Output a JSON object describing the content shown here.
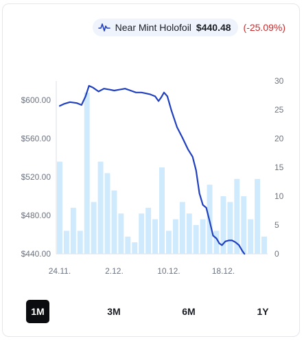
{
  "legend": {
    "icon": "waveform-icon",
    "name": "Near Mint Holofoil",
    "price": "$440.48",
    "change": "(-25.09%)",
    "change_color": "#c92a2a"
  },
  "ranges": [
    {
      "label": "1M",
      "active": true
    },
    {
      "label": "3M",
      "active": false
    },
    {
      "label": "6M",
      "active": false
    },
    {
      "label": "1Y",
      "active": false
    }
  ],
  "colors": {
    "line": "#1f3fbf",
    "bar": "#cfeafc",
    "grid": "#dcdfe4",
    "axis_text": "#6b7280"
  },
  "chart_data": {
    "type": "line",
    "title": "",
    "x_ticks": [
      "24.11.",
      "2.12.",
      "10.12.",
      "18.12."
    ],
    "x_tick_index": [
      0,
      8,
      16,
      24
    ],
    "y_left": {
      "ticks": [
        "$440.00",
        "$480.00",
        "$520.00",
        "$560.00",
        "$600.00"
      ],
      "tick_values": [
        440,
        480,
        520,
        560,
        600
      ],
      "range": [
        440,
        620
      ]
    },
    "y_right": {
      "ticks": [
        "0",
        "5",
        "10",
        "15",
        "20",
        "25",
        "30"
      ],
      "tick_values": [
        0,
        5,
        10,
        15,
        20,
        25,
        30
      ],
      "range": [
        0,
        30
      ]
    },
    "grid": false,
    "series": [
      {
        "name": "Near Mint Holofoil",
        "type": "line",
        "axis": "left",
        "points": [
          [
            0,
            594
          ],
          [
            0.6,
            596
          ],
          [
            1.5,
            598
          ],
          [
            2.5,
            597
          ],
          [
            3.2,
            595
          ],
          [
            3.8,
            604
          ],
          [
            4.3,
            615
          ],
          [
            4.9,
            613
          ],
          [
            5.7,
            609
          ],
          [
            6.5,
            612
          ],
          [
            7.3,
            611
          ],
          [
            8.0,
            610
          ],
          [
            8.8,
            611
          ],
          [
            9.6,
            612
          ],
          [
            10.4,
            610
          ],
          [
            11.2,
            608
          ],
          [
            12.0,
            608
          ],
          [
            12.7,
            607
          ],
          [
            13.3,
            606
          ],
          [
            14.0,
            604
          ],
          [
            14.5,
            599
          ],
          [
            14.9,
            603
          ],
          [
            15.3,
            608
          ],
          [
            15.8,
            604
          ],
          [
            16.4,
            589
          ],
          [
            17.2,
            572
          ],
          [
            18.0,
            561
          ],
          [
            18.8,
            549
          ],
          [
            19.5,
            541
          ],
          [
            20.0,
            527
          ],
          [
            20.5,
            503
          ],
          [
            21.0,
            491
          ],
          [
            21.5,
            488
          ],
          [
            22.0,
            474
          ],
          [
            22.5,
            459
          ],
          [
            23.0,
            456
          ],
          [
            23.4,
            451
          ],
          [
            23.8,
            449
          ],
          [
            24.3,
            453
          ],
          [
            24.8,
            454
          ],
          [
            25.3,
            454
          ],
          [
            25.8,
            452
          ],
          [
            26.3,
            449
          ],
          [
            26.8,
            443
          ],
          [
            27.1,
            440
          ]
        ]
      },
      {
        "name": "Volume",
        "type": "bar",
        "axis": "right",
        "values": [
          16,
          4,
          8,
          4,
          28,
          9,
          16,
          14,
          11,
          7,
          3,
          2,
          7,
          8,
          6,
          15,
          4,
          6,
          9,
          7,
          5,
          6,
          12,
          4,
          10,
          9,
          13,
          10,
          6,
          13,
          3
        ]
      }
    ]
  }
}
